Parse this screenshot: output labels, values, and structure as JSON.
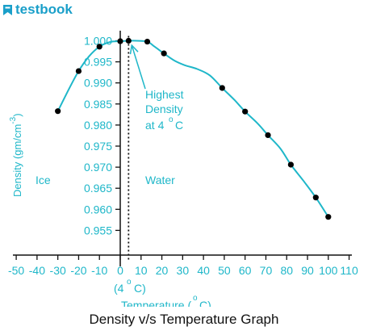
{
  "brand": {
    "name": "testbook",
    "icon": "testbook-logo-icon"
  },
  "colors": {
    "accent": "#1fb7c9",
    "points": "#000000",
    "axis": "#111111",
    "brand": "#1a9fc9"
  },
  "chart_data": {
    "type": "line",
    "title": "Density v/s Temperature Graph",
    "xlabel": "Temperature (°C)",
    "ylabel": "Density (gm/cm⁻³)",
    "xlim": [
      -50,
      110
    ],
    "ylim": [
      0.95,
      1.0
    ],
    "x_ticks": [
      -50,
      -40,
      -30,
      -20,
      -10,
      0,
      10,
      20,
      30,
      40,
      50,
      60,
      70,
      80,
      90,
      100,
      110
    ],
    "y_ticks": [
      0.955,
      0.96,
      0.965,
      0.97,
      0.975,
      0.98,
      0.985,
      0.99,
      0.995,
      1.0
    ],
    "y_tick_labels": [
      "0.955",
      "0.960",
      "0.965",
      "0.970",
      "0.975",
      "0.980",
      "0.985",
      "0.990",
      "0.995",
      "1.000"
    ],
    "curve": [
      [
        -30,
        0.9833
      ],
      [
        -25,
        0.9882
      ],
      [
        -20,
        0.9928
      ],
      [
        -15,
        0.9963
      ],
      [
        -10,
        0.9986
      ],
      [
        -5,
        0.9997
      ],
      [
        0,
        0.9999
      ],
      [
        4,
        1.0
      ],
      [
        8,
        1.0
      ],
      [
        13,
        0.9998
      ],
      [
        16,
        0.9988
      ],
      [
        21,
        0.997
      ],
      [
        26,
        0.9953
      ],
      [
        31,
        0.9942
      ],
      [
        37,
        0.9933
      ],
      [
        43,
        0.9918
      ],
      [
        49,
        0.9888
      ],
      [
        55,
        0.9859
      ],
      [
        60,
        0.9832
      ],
      [
        66,
        0.9804
      ],
      [
        71,
        0.9776
      ],
      [
        77,
        0.9744
      ],
      [
        82,
        0.9706
      ],
      [
        88,
        0.9668
      ],
      [
        94,
        0.9628
      ],
      [
        100,
        0.9582
      ]
    ],
    "points": [
      {
        "x": -30,
        "y": 0.9833
      },
      {
        "x": -20,
        "y": 0.9928
      },
      {
        "x": -10,
        "y": 0.9986
      },
      {
        "x": 0,
        "y": 0.9999
      },
      {
        "x": 4,
        "y": 1.0
      },
      {
        "x": 13,
        "y": 0.9998
      },
      {
        "x": 21,
        "y": 0.997
      },
      {
        "x": 49,
        "y": 0.9888
      },
      {
        "x": 60,
        "y": 0.9832
      },
      {
        "x": 71,
        "y": 0.9776
      },
      {
        "x": 82,
        "y": 0.9706
      },
      {
        "x": 94,
        "y": 0.9628
      },
      {
        "x": 100,
        "y": 0.9582
      }
    ],
    "reference_line": {
      "x": 4,
      "style": "dotted"
    },
    "region_labels": {
      "left": "Ice",
      "right": "Water"
    },
    "annotation": {
      "line1": "Highest",
      "line2": "Density",
      "line3": "at 4",
      "degree": "o",
      "unit": "C",
      "points_to_x": 4,
      "points_to_y": 0.9995
    },
    "x_marker": {
      "prefix": "(4",
      "degree": "o",
      "suffix": "C)"
    },
    "xlabel_parts": {
      "prefix": "Temperature (",
      "degree": "o",
      "suffix": "C)"
    },
    "ylabel_parts": {
      "main": "Density (gm/cm",
      "sup": "-3",
      "close": ")"
    }
  }
}
